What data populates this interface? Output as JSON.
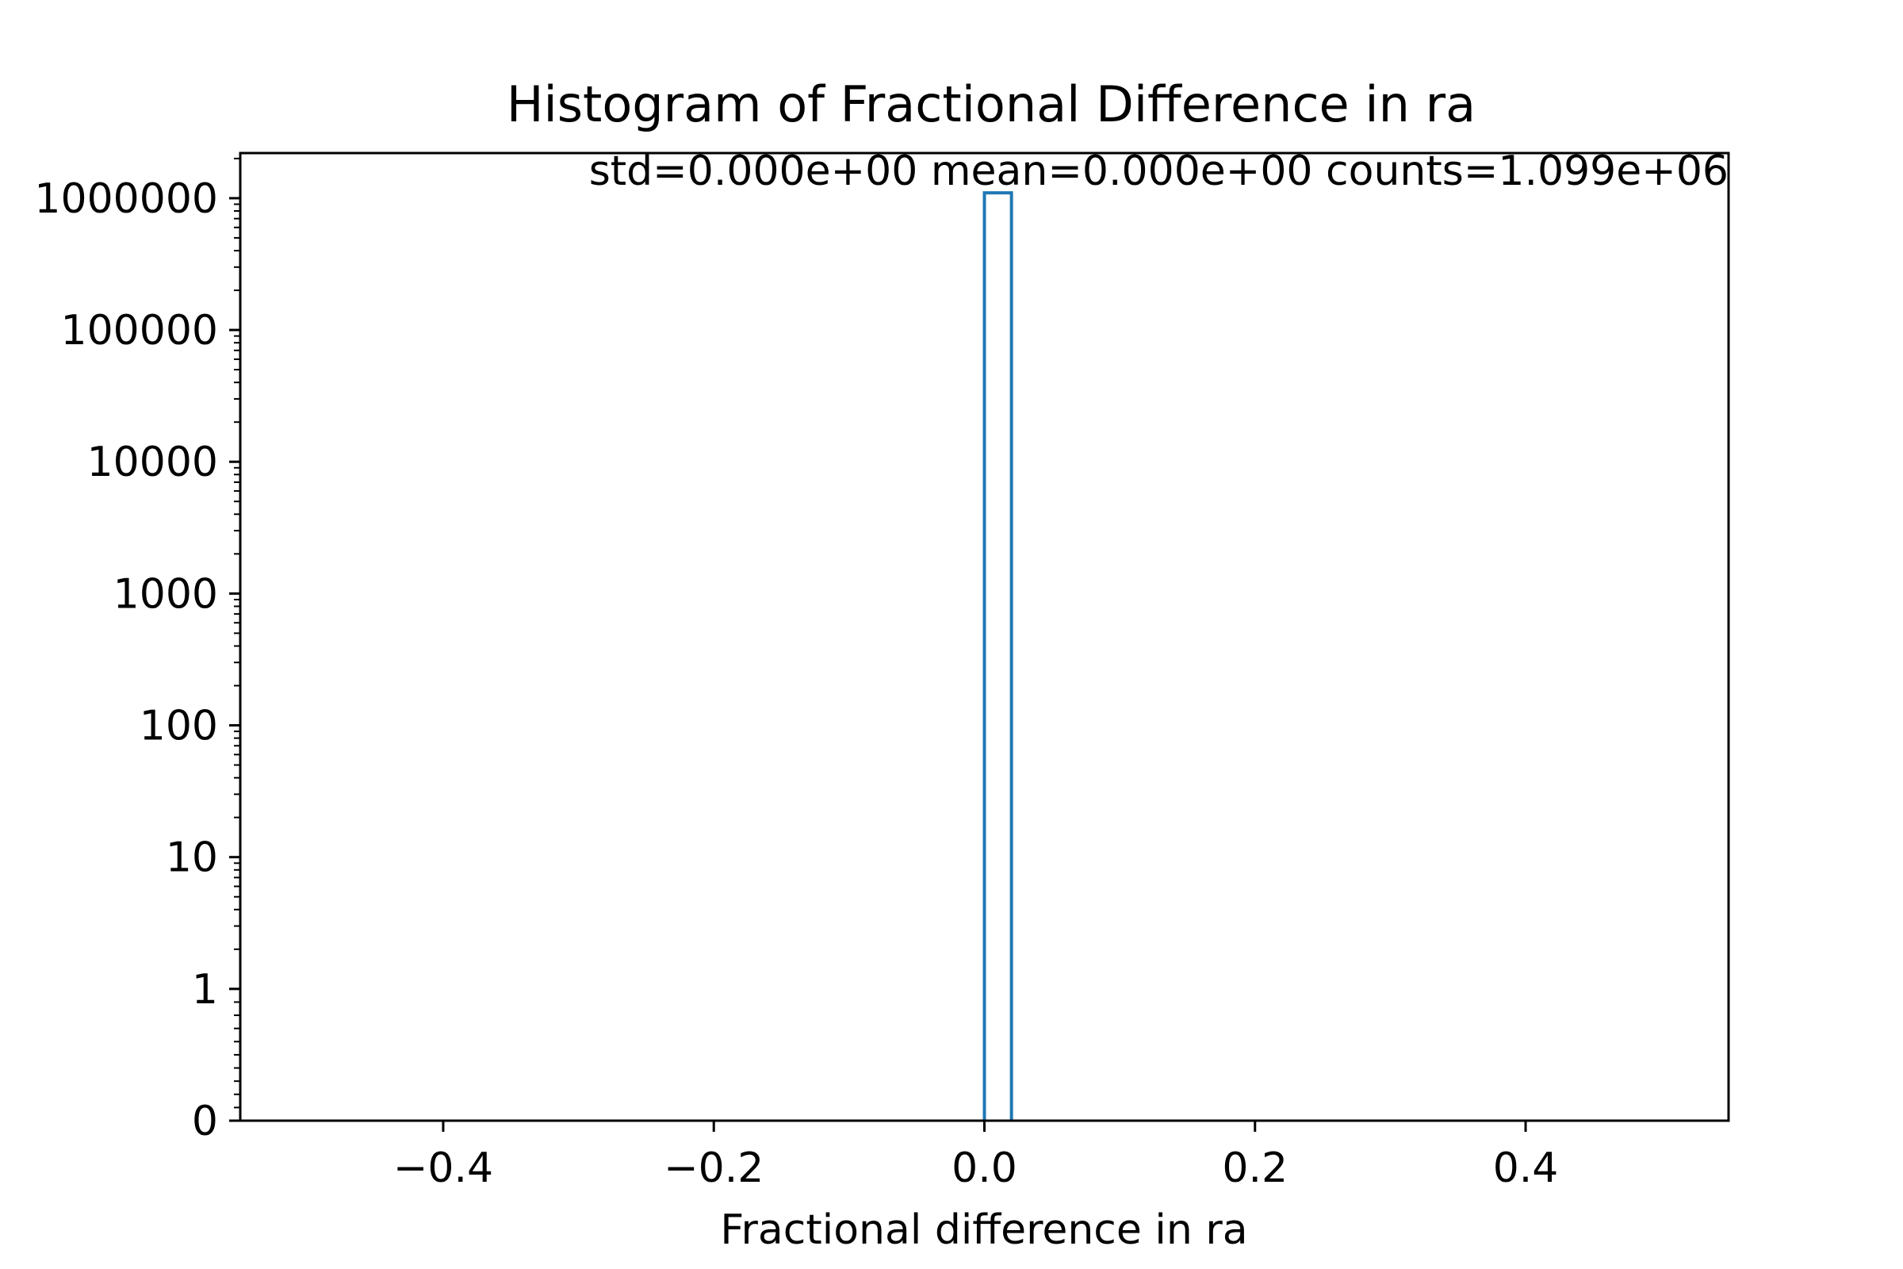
{
  "chart_data": {
    "type": "bar",
    "title": "Histogram of Fractional Difference in ra",
    "annotation": "std=0.000e+00 mean=0.000e+00 counts=1.099e+06",
    "xlabel": "Fractional difference in ra",
    "ylabel": "",
    "x_scale": "linear",
    "y_scale": "symlog",
    "xlim": [
      -0.55,
      0.55
    ],
    "ylim": [
      0,
      2200000
    ],
    "x_ticks": [
      -0.4,
      -0.2,
      0.0,
      0.2,
      0.4
    ],
    "x_tick_labels": [
      "−0.4",
      "−0.2",
      "0.0",
      "0.2",
      "0.4"
    ],
    "y_ticks": [
      0,
      1,
      10,
      100,
      1000,
      10000,
      100000,
      1000000
    ],
    "y_tick_labels": [
      "0",
      "1",
      "10",
      "100",
      "1000",
      "10000",
      "100000",
      "1000000"
    ],
    "grid": false,
    "histtype": "step",
    "bin_range": [
      -0.5,
      0.5
    ],
    "bin_edges": [
      0.0,
      0.02
    ],
    "values": [
      1099000
    ],
    "color": "#1f77b4"
  }
}
